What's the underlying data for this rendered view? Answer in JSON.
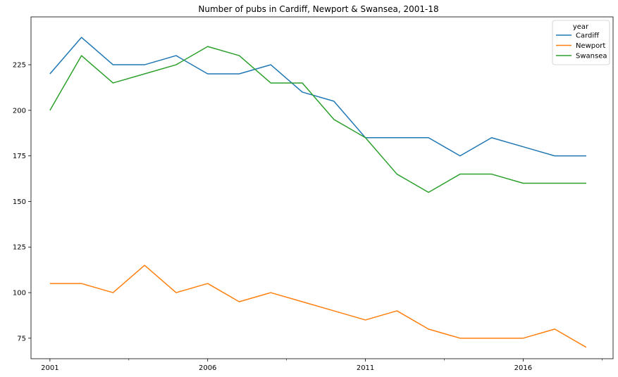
{
  "chart_data": {
    "type": "line",
    "title": "Number of pubs in Cardiff, Newport & Swansea, 2001-18",
    "xlabel": "",
    "ylabel": "",
    "x": [
      2001,
      2002,
      2003,
      2004,
      2005,
      2006,
      2007,
      2008,
      2009,
      2010,
      2011,
      2012,
      2013,
      2014,
      2015,
      2016,
      2017,
      2018
    ],
    "xticks": [
      2001,
      2006,
      2011,
      2016
    ],
    "xticks_minor": [
      2003.5,
      2008.5,
      2013.5,
      2018.5
    ],
    "xlim": [
      2000.4,
      2018.85
    ],
    "yticks": [
      75,
      100,
      125,
      150,
      175,
      200,
      225
    ],
    "ylim": [
      63.75,
      251.25
    ],
    "grid": false,
    "legend": {
      "title": "year",
      "placement": "top-right"
    },
    "series": [
      {
        "name": "Cardiff",
        "color": "#1f77b4",
        "values": [
          220,
          240,
          225,
          225,
          230,
          220,
          220,
          225,
          210,
          205,
          185,
          185,
          185,
          175,
          185,
          180,
          175,
          175
        ]
      },
      {
        "name": "Newport",
        "color": "#ff7f0e",
        "values": [
          105,
          105,
          100,
          115,
          100,
          105,
          95,
          100,
          95,
          90,
          85,
          90,
          80,
          75,
          75,
          75,
          80,
          70
        ]
      },
      {
        "name": "Swansea",
        "color": "#2ca02c",
        "values": [
          200,
          230,
          215,
          220,
          225,
          235,
          230,
          215,
          215,
          195,
          185,
          165,
          155,
          165,
          165,
          160,
          160,
          160
        ]
      }
    ]
  }
}
